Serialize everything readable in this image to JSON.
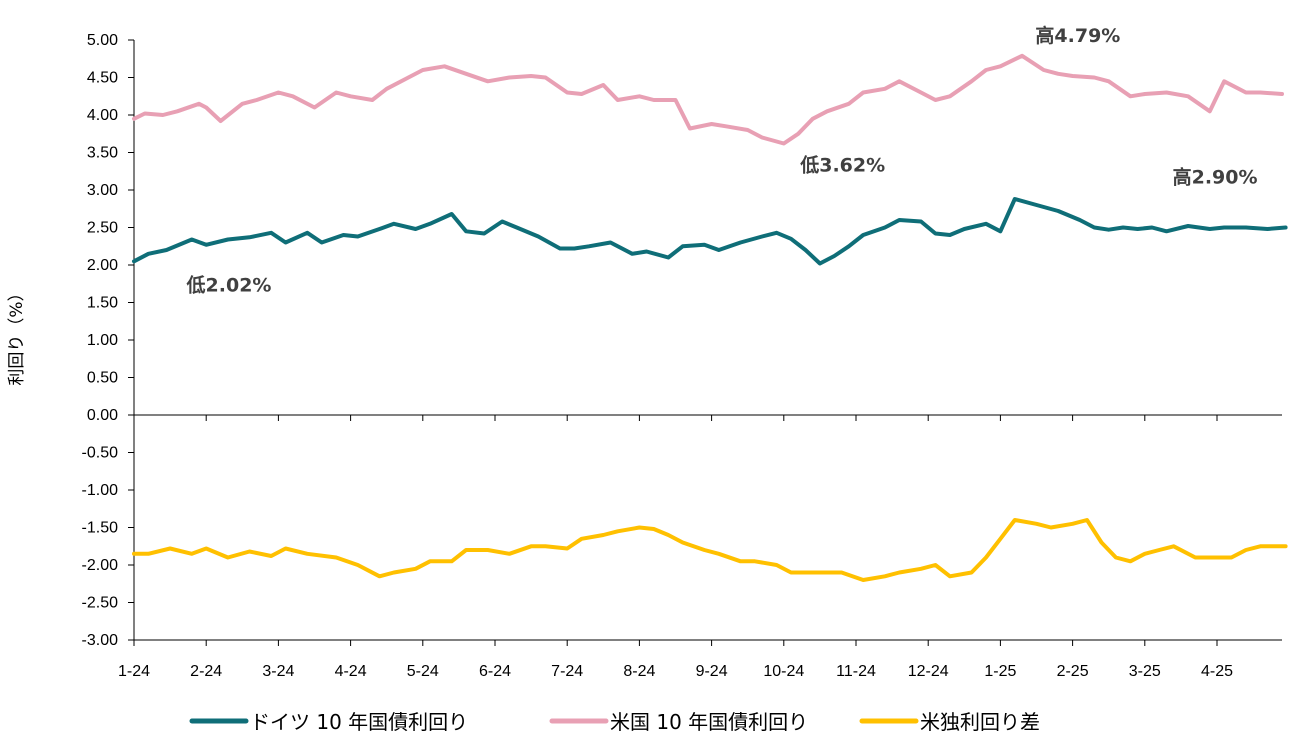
{
  "chart_data": {
    "type": "line",
    "ylabel": "利回り（%）",
    "ylim": [
      -3.0,
      5.0
    ],
    "yticks": [
      "5.00",
      "4.50",
      "4.00",
      "3.50",
      "3.00",
      "2.50",
      "2.00",
      "1.50",
      "1.00",
      "0.50",
      "0.00",
      "-0.50",
      "-1.00",
      "-1.50",
      "-2.00",
      "-2.50",
      "-3.00"
    ],
    "categories": [
      "1-24",
      "2-24",
      "3-24",
      "4-24",
      "5-24",
      "6-24",
      "7-24",
      "8-24",
      "9-24",
      "10-24",
      "11-24",
      "12-24",
      "1-25",
      "2-25",
      "3-25",
      "4-25"
    ],
    "grid": false,
    "legend_position": "bottom",
    "series": [
      {
        "name": "ドイツ 10 年国債利回り",
        "color": "#0f6e78",
        "x": [
          0.0,
          0.2,
          0.45,
          0.8,
          1.0,
          1.3,
          1.6,
          1.9,
          2.1,
          2.4,
          2.6,
          2.9,
          3.1,
          3.4,
          3.6,
          3.9,
          4.1,
          4.4,
          4.6,
          4.85,
          5.1,
          5.3,
          5.6,
          5.9,
          6.1,
          6.3,
          6.6,
          6.9,
          7.1,
          7.4,
          7.6,
          7.9,
          8.1,
          8.4,
          8.7,
          8.9,
          9.1,
          9.3,
          9.5,
          9.7,
          9.9,
          10.1,
          10.4,
          10.6,
          10.9,
          11.1,
          11.3,
          11.5,
          11.8,
          12.0,
          12.2,
          12.5,
          12.8,
          13.1,
          13.3,
          13.5,
          13.7,
          13.9,
          14.1,
          14.3,
          14.6,
          14.9,
          15.1,
          15.4,
          15.7,
          15.95
        ],
        "values": [
          2.05,
          2.15,
          2.2,
          2.34,
          2.27,
          2.34,
          2.37,
          2.43,
          2.3,
          2.43,
          2.3,
          2.4,
          2.38,
          2.48,
          2.55,
          2.48,
          2.55,
          2.68,
          2.45,
          2.42,
          2.58,
          2.5,
          2.38,
          2.22,
          2.22,
          2.25,
          2.3,
          2.15,
          2.18,
          2.1,
          2.25,
          2.27,
          2.2,
          2.3,
          2.38,
          2.43,
          2.35,
          2.2,
          2.02,
          2.12,
          2.25,
          2.4,
          2.5,
          2.6,
          2.58,
          2.42,
          2.4,
          2.48,
          2.55,
          2.45,
          2.88,
          2.8,
          2.72,
          2.6,
          2.5,
          2.47,
          2.5,
          2.48,
          2.5,
          2.45,
          2.52,
          2.48,
          2.5,
          2.5,
          2.48,
          2.5
        ],
        "annotations": [
          {
            "text": "低2.02%",
            "x": 0.0,
            "y": 2.02
          },
          {
            "text": "高2.90%",
            "x": 14.35,
            "y": 2.9
          }
        ]
      },
      {
        "name": "米国 10 年国債利回り",
        "color": "#e8a0b4",
        "x": [
          0.0,
          0.15,
          0.4,
          0.6,
          0.9,
          1.0,
          1.2,
          1.5,
          1.7,
          2.0,
          2.2,
          2.5,
          2.8,
          3.0,
          3.3,
          3.5,
          3.8,
          4.0,
          4.3,
          4.6,
          4.9,
          5.2,
          5.5,
          5.7,
          6.0,
          6.2,
          6.5,
          6.7,
          7.0,
          7.2,
          7.5,
          7.7,
          8.0,
          8.2,
          8.5,
          8.7,
          9.0,
          9.2,
          9.4,
          9.6,
          9.9,
          10.1,
          10.4,
          10.6,
          10.9,
          11.1,
          11.3,
          11.6,
          11.8,
          12.0,
          12.3,
          12.6,
          12.8,
          13.0,
          13.3,
          13.5,
          13.8,
          14.0,
          14.3,
          14.6,
          14.9,
          15.1,
          15.4,
          15.6,
          15.9
        ],
        "values": [
          3.95,
          4.02,
          4.0,
          4.05,
          4.15,
          4.1,
          3.92,
          4.15,
          4.2,
          4.3,
          4.25,
          4.1,
          4.3,
          4.25,
          4.2,
          4.35,
          4.5,
          4.6,
          4.65,
          4.55,
          4.45,
          4.5,
          4.52,
          4.5,
          4.3,
          4.28,
          4.4,
          4.2,
          4.25,
          4.2,
          4.2,
          3.82,
          3.88,
          3.85,
          3.8,
          3.7,
          3.62,
          3.75,
          3.95,
          4.05,
          4.15,
          4.3,
          4.35,
          4.45,
          4.3,
          4.2,
          4.25,
          4.45,
          4.6,
          4.65,
          4.79,
          4.6,
          4.55,
          4.52,
          4.5,
          4.45,
          4.25,
          4.28,
          4.3,
          4.25,
          4.05,
          4.45,
          4.3,
          4.3,
          4.28
        ],
        "annotations": [
          {
            "text": "低3.62%",
            "x": 8.5,
            "y": 3.62
          },
          {
            "text": "高4.79%",
            "x": 12.45,
            "y": 4.79
          }
        ]
      },
      {
        "name": "米独利回り差",
        "color": "#ffc000",
        "x": [
          0.0,
          0.2,
          0.5,
          0.8,
          1.0,
          1.3,
          1.6,
          1.9,
          2.1,
          2.4,
          2.8,
          3.1,
          3.4,
          3.6,
          3.9,
          4.1,
          4.4,
          4.6,
          4.9,
          5.2,
          5.5,
          5.7,
          6.0,
          6.2,
          6.5,
          6.7,
          7.0,
          7.2,
          7.4,
          7.6,
          7.9,
          8.1,
          8.4,
          8.6,
          8.9,
          9.1,
          9.3,
          9.6,
          9.8,
          10.1,
          10.4,
          10.6,
          10.9,
          11.1,
          11.3,
          11.6,
          11.8,
          12.0,
          12.2,
          12.5,
          12.7,
          13.0,
          13.2,
          13.4,
          13.6,
          13.8,
          14.0,
          14.2,
          14.4,
          14.7,
          15.0,
          15.2,
          15.4,
          15.6,
          15.95
        ],
        "values": [
          -1.85,
          -1.85,
          -1.78,
          -1.85,
          -1.78,
          -1.9,
          -1.82,
          -1.88,
          -1.78,
          -1.85,
          -1.9,
          -2.0,
          -2.15,
          -2.1,
          -2.05,
          -1.95,
          -1.95,
          -1.8,
          -1.8,
          -1.85,
          -1.75,
          -1.75,
          -1.78,
          -1.65,
          -1.6,
          -1.55,
          -1.5,
          -1.52,
          -1.6,
          -1.7,
          -1.8,
          -1.85,
          -1.95,
          -1.95,
          -2.0,
          -2.1,
          -2.1,
          -2.1,
          -2.1,
          -2.2,
          -2.15,
          -2.1,
          -2.05,
          -2.0,
          -2.15,
          -2.1,
          -1.9,
          -1.65,
          -1.4,
          -1.45,
          -1.5,
          -1.45,
          -1.4,
          -1.7,
          -1.9,
          -1.95,
          -1.85,
          -1.8,
          -1.75,
          -1.9,
          -1.9,
          -1.9,
          -1.8,
          -1.75,
          -1.75
        ],
        "annotations": []
      }
    ]
  }
}
